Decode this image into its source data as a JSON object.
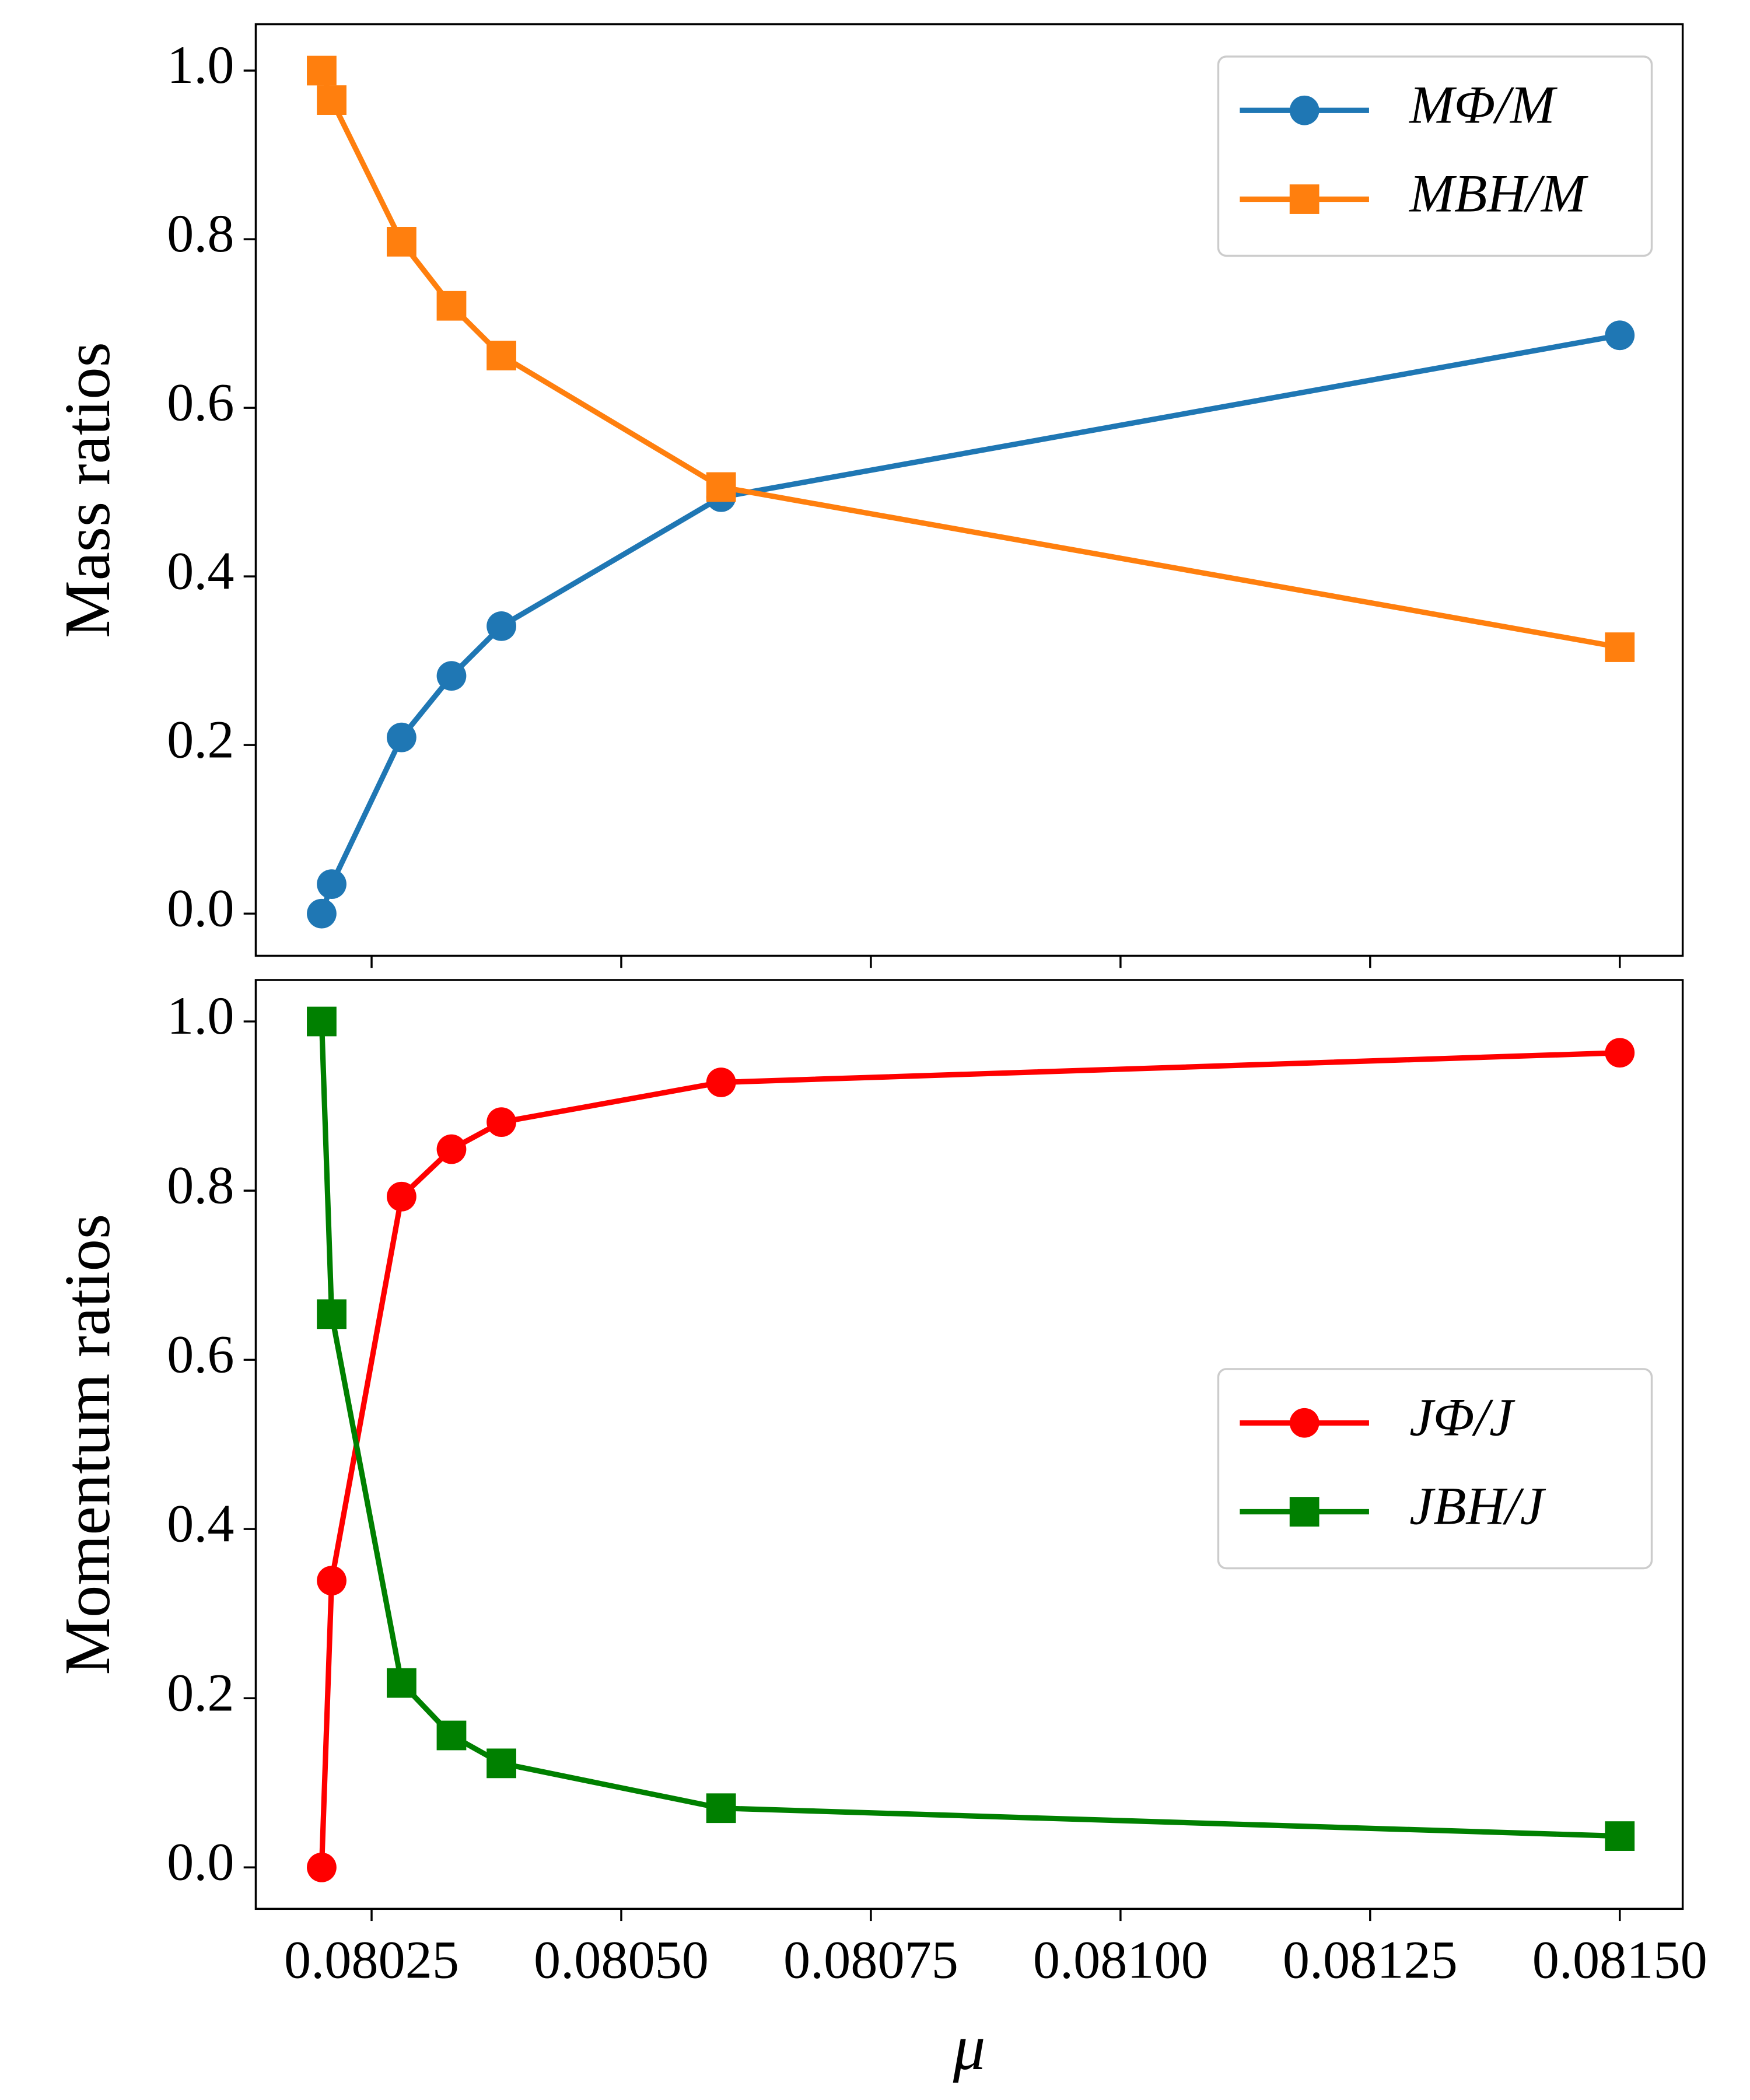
{
  "chart_data": [
    {
      "type": "line",
      "ylabel": "Mass ratios",
      "x": [
        0.0802,
        0.08021,
        0.08028,
        0.08033,
        0.08038,
        0.0806,
        0.0815
      ],
      "series": [
        {
          "name": "MΦ/M",
          "color": "#1f77b4",
          "marker": "circle",
          "values": [
            0,
            0.035,
            0.209,
            0.282,
            0.341,
            0.494,
            0.686
          ]
        },
        {
          "name": "MBH/M",
          "color": "#ff7f0e",
          "marker": "square",
          "values": [
            1.0,
            0.965,
            0.797,
            0.721,
            0.662,
            0.506,
            0.316
          ]
        }
      ],
      "xlim": [
        0.080134,
        0.081563
      ],
      "ylim": [
        -0.05,
        1.055
      ],
      "xticks": [
        0.08025,
        0.0805,
        0.08075,
        0.081,
        0.08125,
        0.0815
      ],
      "yticks": [
        {
          "value": 0,
          "label": "0.0"
        },
        0.2,
        0.4,
        0.6,
        0.8,
        {
          "value": 1,
          "label": "1.0"
        }
      ],
      "legend": "upper right"
    },
    {
      "type": "line",
      "ylabel": "Momentum ratios",
      "xlabel": "μ",
      "x": [
        0.0802,
        0.08021,
        0.08028,
        0.08033,
        0.08038,
        0.0806,
        0.0815
      ],
      "series": [
        {
          "name": "JΦ/J",
          "color": "#ff0000",
          "marker": "circle",
          "values": [
            0,
            0.339,
            0.793,
            0.849,
            0.881,
            0.928,
            0.963
          ]
        },
        {
          "name": "JBH/J",
          "color": "#008000",
          "marker": "square",
          "values": [
            1.0,
            0.654,
            0.218,
            0.156,
            0.123,
            0.07,
            0.037
          ]
        }
      ],
      "xlim": [
        0.080134,
        0.081563
      ],
      "ylim": [
        -0.049,
        1.049
      ],
      "xticks": [
        0.08025,
        {
          "value": 0.0805,
          "label": "0.08050"
        },
        0.08075,
        {
          "value": 0.081,
          "label": "0.08100"
        },
        0.08125,
        {
          "value": 0.0815,
          "label": "0.08150"
        }
      ],
      "yticks": [
        {
          "value": 0,
          "label": "0.0"
        },
        0.2,
        0.4,
        0.6,
        0.8,
        {
          "value": 1,
          "label": "1.0"
        }
      ],
      "legend": "center right"
    }
  ]
}
